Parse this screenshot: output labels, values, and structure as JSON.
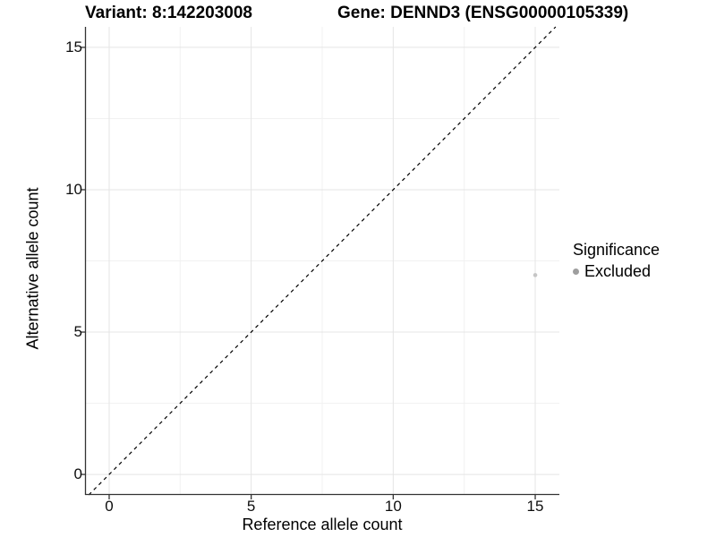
{
  "title": {
    "variant": "Variant: 8:142203008",
    "gene": "Gene: DENND3 (ENSG00000105339)"
  },
  "axes": {
    "x_label": "Reference allele count",
    "y_label": "Alternative allele count"
  },
  "legend": {
    "title": "Significance",
    "items": [
      {
        "label": "Excluded",
        "color": "#9e9e9e"
      }
    ]
  },
  "colors": {
    "major_grid": "#e5e5e5",
    "minor_grid": "#f1f1f1",
    "axis_line": "#333333",
    "tick_mark": "#333333",
    "point": "#c6c6c6",
    "dashed_line": "#000000"
  },
  "chart_data": {
    "type": "scatter",
    "title": "Variant: 8:142203008    Gene: DENND3 (ENSG00000105339)",
    "xlabel": "Reference allele count",
    "ylabel": "Alternative allele count",
    "xlim": [
      -0.85,
      15.85
    ],
    "ylim": [
      -0.72,
      15.72
    ],
    "x_major_ticks": [
      0,
      5,
      10,
      15
    ],
    "y_major_ticks": [
      0,
      5,
      10,
      15
    ],
    "x_minor_gridlines": [
      2.5,
      7.5,
      12.5
    ],
    "y_minor_gridlines": [
      2.5,
      7.5,
      12.5
    ],
    "grid": true,
    "legend_position": "right",
    "series": [
      {
        "name": "Excluded",
        "points": [
          {
            "x": 15,
            "y": 7
          }
        ],
        "point_radius": 2.3
      }
    ],
    "reference_line": {
      "slope": 1,
      "intercept": 0,
      "style": "dashed"
    }
  }
}
